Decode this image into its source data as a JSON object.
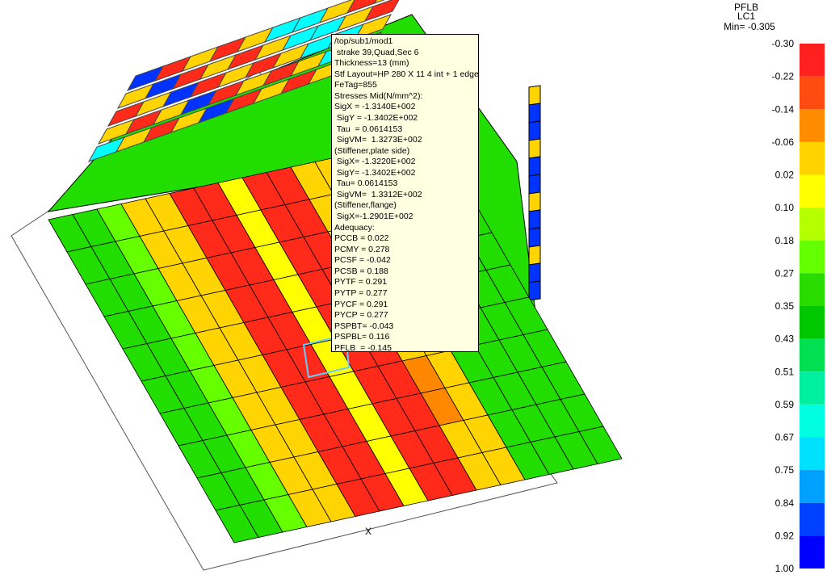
{
  "tooltip": {
    "lines": [
      "/top/sub1/mod1",
      " strake 39,Quad,Sec 6",
      "Thickness=13 (mm)",
      "Stf Layout=HP 280 X 11 4 int + 1 edge",
      "FeTag=855",
      "Stresses Mid(N/mm^2):",
      "SigX = -1.3140E+002",
      " SigY = -1.3402E+002",
      " Tau  = 0.0614153",
      " SigVM=  1.3273E+002",
      "(Stiffener,plate side)",
      " SigX= -1.3220E+002",
      " SigY= -1.3402E+002",
      " Tau= 0.0614153",
      " SigVM=  1.3312E+002",
      "(Stiffener,flange)",
      " SigX=-1.2901E+002",
      "Adequacy:",
      "PCCB = 0.022",
      "PCMY = 0.278",
      "PCSF = -0.042",
      "PCSB = 0.188",
      "PYTF = 0.291",
      "PYTP = 0.277",
      "PYCF = 0.291",
      "PYCP = 0.277",
      "PSPBT= -0.043",
      "PSPBL= 0.116",
      "PFLB  = -0.145"
    ]
  },
  "axis_label": "X",
  "legend": {
    "title": "PFLB",
    "subtitle": "LC1",
    "min_label": "Min= -0.305",
    "labels": [
      "-0.30",
      "-0.22",
      "-0.14",
      "-0.06",
      "0.02",
      "0.10",
      "0.18",
      "0.27",
      "0.35",
      "0.43",
      "0.51",
      "0.59",
      "0.67",
      "0.75",
      "0.84",
      "0.92",
      "1.00"
    ]
  }
}
